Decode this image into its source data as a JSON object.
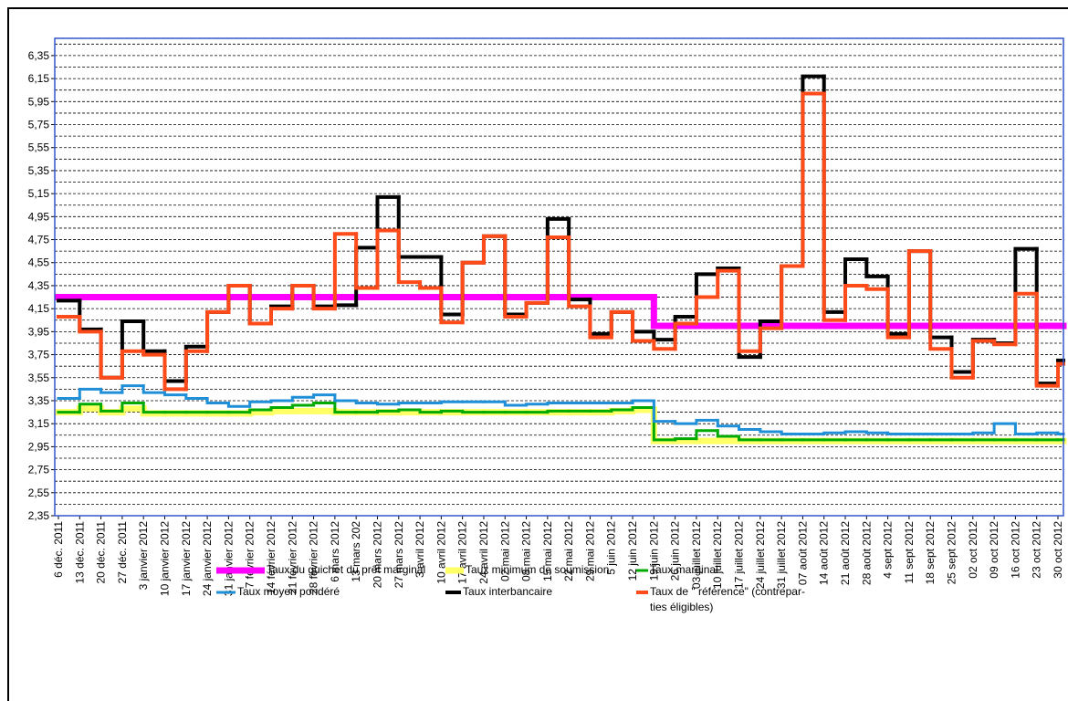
{
  "chart_data": {
    "type": "step",
    "categories": [
      "6 déc. 2011",
      "13 déc. 2011",
      "20 déc. 2011",
      "27 déc. 2011",
      "3 janvier 2012",
      "10 janvier 2012",
      "17 janvier 2012",
      "24 janvier 2012",
      "31 janvier 2012",
      "7  février 2012",
      "14 février 2012",
      "21 février 2012",
      "28 février 2012",
      "6 mars 2012",
      "13 mars 202",
      "20 mars 2012",
      "27 mars 2012",
      "3 avril 2012",
      "10 avril 2012",
      "17 avril 2012",
      "24 avril 2012",
      "02 mai 2012",
      "08 mai 2012",
      "15 mai 2012",
      "22 mai 2012",
      "29 mai 2012",
      "5 juin 2012",
      "12 juin 2012",
      "19 juin 2012",
      "26 juin 2012",
      "03 juillet 2012",
      "10 juillet 2012",
      "17 juillet 2012",
      "24 juillet 2012",
      "31 juillet 2012",
      "07 août 2012",
      "14 août 2012",
      "21 août 2012",
      "28 août 2012",
      "4 sept 2012",
      "11 sept 2012",
      "18 sept 2012",
      "25 sept 2012",
      "02 oct 2012",
      "09 oct 2012",
      "16 oct 2012",
      "23 oct 2012",
      "30 oct 2012"
    ],
    "ylim": [
      2.35,
      6.5
    ],
    "yticks": [
      {
        "value": 2.35,
        "label": "2,35"
      },
      {
        "value": 2.55,
        "label": "2,55"
      },
      {
        "value": 2.75,
        "label": "2,75"
      },
      {
        "value": 2.95,
        "label": "2,95"
      },
      {
        "value": 3.15,
        "label": "3,15"
      },
      {
        "value": 3.35,
        "label": "3,35"
      },
      {
        "value": 3.55,
        "label": "3,55"
      },
      {
        "value": 3.75,
        "label": "3,75"
      },
      {
        "value": 3.95,
        "label": "3,95"
      },
      {
        "value": 4.15,
        "label": "4,15"
      },
      {
        "value": 4.35,
        "label": "4,35"
      },
      {
        "value": 4.55,
        "label": "4,55"
      },
      {
        "value": 4.75,
        "label": "4,75"
      },
      {
        "value": 4.95,
        "label": "4,95"
      },
      {
        "value": 5.15,
        "label": "5,15"
      },
      {
        "value": 5.35,
        "label": "5,35"
      },
      {
        "value": 5.55,
        "label": "5,55"
      },
      {
        "value": 5.75,
        "label": "5,75"
      },
      {
        "value": 5.95,
        "label": "5,95"
      },
      {
        "value": 6.15,
        "label": "6,15"
      },
      {
        "value": 6.35,
        "label": "6,35"
      }
    ],
    "minor_yticks": [
      2.45,
      2.65,
      2.85,
      3.05,
      3.25,
      3.45,
      3.65,
      3.85,
      4.05,
      4.25,
      4.45,
      4.65,
      4.85,
      5.05,
      5.25,
      5.45,
      5.65,
      5.85,
      6.05,
      6.25,
      6.45
    ],
    "grid": true,
    "series": [
      {
        "name": "Taux du guichet du prêt marginal",
        "color": "#ff00ff",
        "width": 7,
        "values": [
          4.25,
          4.25,
          4.25,
          4.25,
          4.25,
          4.25,
          4.25,
          4.25,
          4.25,
          4.25,
          4.25,
          4.25,
          4.25,
          4.25,
          4.25,
          4.25,
          4.25,
          4.25,
          4.25,
          4.25,
          4.25,
          4.25,
          4.25,
          4.25,
          4.25,
          4.25,
          4.25,
          4.25,
          4.0,
          4.0,
          4.0,
          4.0,
          4.0,
          4.0,
          4.0,
          4.0,
          4.0,
          4.0,
          4.0,
          4.0,
          4.0,
          4.0,
          4.0,
          4.0,
          4.0,
          4.0,
          4.0,
          4.0
        ]
      },
      {
        "name": "Taux minimum de soumission",
        "color": "#ffff66",
        "width": 7,
        "values": [
          3.25,
          3.28,
          3.25,
          3.28,
          3.24,
          3.24,
          3.24,
          3.24,
          3.24,
          3.25,
          3.26,
          3.26,
          3.26,
          3.25,
          3.25,
          3.25,
          3.25,
          3.25,
          3.25,
          3.25,
          3.25,
          3.25,
          3.25,
          3.25,
          3.25,
          3.25,
          3.26,
          3.27,
          3.0,
          3.0,
          3.0,
          3.0,
          3.0,
          3.0,
          3.0,
          3.0,
          3.0,
          3.0,
          3.0,
          3.0,
          3.0,
          3.0,
          3.0,
          3.0,
          3.0,
          3.0,
          3.0,
          3.0
        ]
      },
      {
        "name": "Taux marginal",
        "color": "#00aa00",
        "width": 3,
        "values": [
          3.25,
          3.32,
          3.26,
          3.33,
          3.25,
          3.25,
          3.25,
          3.25,
          3.25,
          3.27,
          3.29,
          3.31,
          3.33,
          3.25,
          3.25,
          3.26,
          3.27,
          3.25,
          3.26,
          3.25,
          3.25,
          3.25,
          3.25,
          3.26,
          3.26,
          3.26,
          3.27,
          3.29,
          3.01,
          3.02,
          3.09,
          3.04,
          3.01,
          3.01,
          3.01,
          3.01,
          3.01,
          3.01,
          3.01,
          3.01,
          3.01,
          3.01,
          3.01,
          3.01,
          3.01,
          3.01,
          3.01,
          3.01
        ]
      },
      {
        "name": "Taux moyen pondéré",
        "color": "#1f8fd8",
        "width": 3,
        "values": [
          3.37,
          3.45,
          3.42,
          3.48,
          3.42,
          3.4,
          3.37,
          3.33,
          3.3,
          3.34,
          3.35,
          3.38,
          3.4,
          3.35,
          3.33,
          3.32,
          3.33,
          3.33,
          3.34,
          3.34,
          3.34,
          3.31,
          3.32,
          3.33,
          3.33,
          3.33,
          3.33,
          3.35,
          3.17,
          3.15,
          3.18,
          3.13,
          3.1,
          3.08,
          3.06,
          3.06,
          3.07,
          3.08,
          3.07,
          3.06,
          3.06,
          3.06,
          3.06,
          3.07,
          3.15,
          3.06,
          3.07,
          3.06
        ]
      },
      {
        "name": "Taux interbancaire",
        "color": "#000000",
        "width": 4,
        "values": [
          4.22,
          3.97,
          3.55,
          4.04,
          3.78,
          3.52,
          3.82,
          4.12,
          4.35,
          4.02,
          4.17,
          4.35,
          4.17,
          4.18,
          4.68,
          5.12,
          4.6,
          4.6,
          4.1,
          4.55,
          4.78,
          4.1,
          4.2,
          4.93,
          4.23,
          3.93,
          4.12,
          3.95,
          3.88,
          4.08,
          4.45,
          4.5,
          3.73,
          4.04,
          4.52,
          6.17,
          4.12,
          4.58,
          4.43,
          3.93,
          4.65,
          3.9,
          3.6,
          3.88,
          3.85,
          4.67,
          3.5,
          3.7
        ]
      },
      {
        "name": "Taux de  \" référence\" (contrepar-\nties éligibles)",
        "color": "#ff4a1a",
        "width": 4,
        "values": [
          4.08,
          3.95,
          3.55,
          3.78,
          3.75,
          3.45,
          3.78,
          4.12,
          4.35,
          4.02,
          4.15,
          4.35,
          4.15,
          4.8,
          4.33,
          4.83,
          4.38,
          4.33,
          4.03,
          4.55,
          4.78,
          4.08,
          4.2,
          4.77,
          4.17,
          3.9,
          4.12,
          3.87,
          3.8,
          4.02,
          4.25,
          4.48,
          3.78,
          3.98,
          4.52,
          6.02,
          4.05,
          4.35,
          4.32,
          3.9,
          4.65,
          3.8,
          3.55,
          3.87,
          3.84,
          4.28,
          3.48,
          3.67
        ]
      }
    ]
  }
}
